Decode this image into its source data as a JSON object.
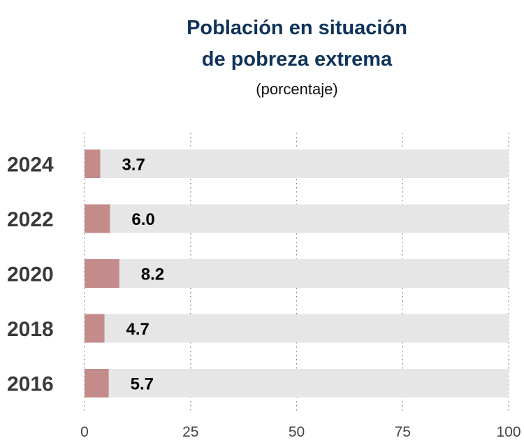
{
  "chart_data": {
    "type": "bar",
    "orientation": "horizontal",
    "title_line1": "Población en situación",
    "title_line2": "de pobreza extrema",
    "subtitle": "(porcentaje)",
    "categories": [
      "2024",
      "2022",
      "2020",
      "2018",
      "2016"
    ],
    "values": [
      3.7,
      6.0,
      8.2,
      4.7,
      5.7
    ],
    "value_labels": [
      "3.7",
      "6.0",
      "8.2",
      "4.7",
      "5.7"
    ],
    "xlim": [
      0,
      100
    ],
    "xticks": [
      0,
      25,
      50,
      75,
      100
    ],
    "xtick_labels": [
      "0",
      "25",
      "50",
      "75",
      "100"
    ],
    "xlabel": "",
    "ylabel": "",
    "grid": "vertical-dotted",
    "colors": {
      "bar": "#c48b8b",
      "track": "#e6e6e6",
      "title": "#0f3358"
    }
  }
}
